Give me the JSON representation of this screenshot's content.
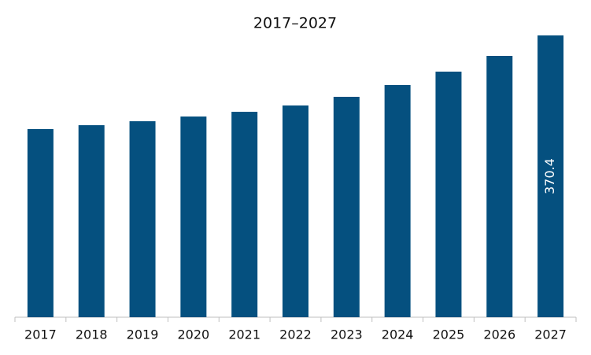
{
  "chart_data": {
    "type": "bar",
    "title": "2017–2027",
    "categories": [
      "2017",
      "2018",
      "2019",
      "2020",
      "2021",
      "2022",
      "2023",
      "2024",
      "2025",
      "2026",
      "2027"
    ],
    "values": [
      247.3,
      252.4,
      257.6,
      263.8,
      270.0,
      278.3,
      289.7,
      305.2,
      322.8,
      343.5,
      370.4
    ],
    "value_labels": [
      null,
      null,
      null,
      null,
      null,
      null,
      null,
      null,
      null,
      null,
      "370.4"
    ],
    "color": "#05507f"
  }
}
